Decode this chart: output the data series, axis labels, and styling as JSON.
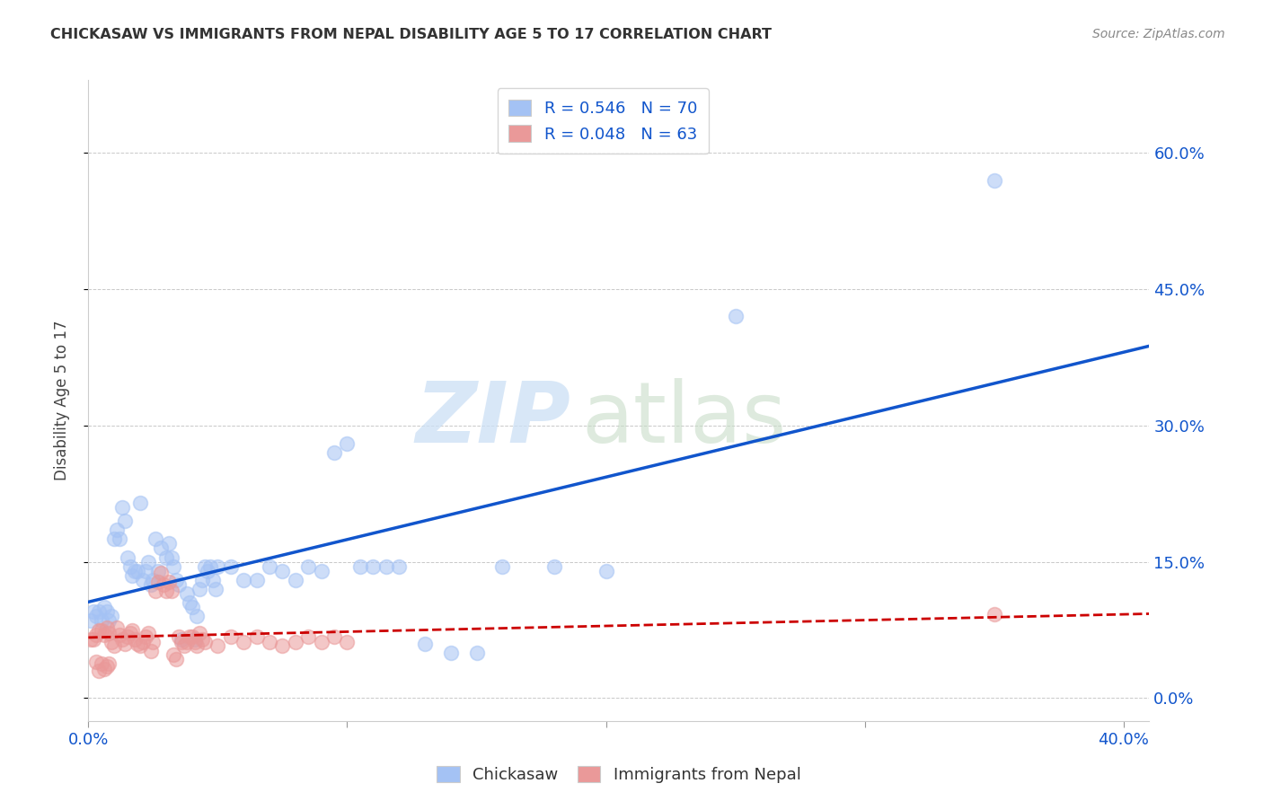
{
  "title": "CHICKASAW VS IMMIGRANTS FROM NEPAL DISABILITY AGE 5 TO 17 CORRELATION CHART",
  "source": "Source: ZipAtlas.com",
  "ylabel": "Disability Age 5 to 17",
  "blue_color": "#a4c2f4",
  "pink_color": "#ea9999",
  "blue_line_color": "#1155cc",
  "pink_line_color": "#cc0000",
  "legend_text_color": "#1155cc",
  "blue_R": 0.546,
  "blue_N": 70,
  "pink_R": 0.048,
  "pink_N": 63,
  "xlim": [
    0.0,
    0.41
  ],
  "ylim": [
    -0.025,
    0.68
  ],
  "xticks": [
    0.0,
    0.1,
    0.2,
    0.3,
    0.4
  ],
  "yticks": [
    0.0,
    0.15,
    0.3,
    0.45,
    0.6
  ],
  "blue_scatter": [
    [
      0.001,
      0.085
    ],
    [
      0.002,
      0.095
    ],
    [
      0.003,
      0.09
    ],
    [
      0.004,
      0.095
    ],
    [
      0.005,
      0.085
    ],
    [
      0.006,
      0.1
    ],
    [
      0.007,
      0.095
    ],
    [
      0.008,
      0.085
    ],
    [
      0.009,
      0.09
    ],
    [
      0.01,
      0.175
    ],
    [
      0.011,
      0.185
    ],
    [
      0.012,
      0.175
    ],
    [
      0.013,
      0.21
    ],
    [
      0.014,
      0.195
    ],
    [
      0.015,
      0.155
    ],
    [
      0.016,
      0.145
    ],
    [
      0.017,
      0.135
    ],
    [
      0.018,
      0.14
    ],
    [
      0.019,
      0.14
    ],
    [
      0.02,
      0.215
    ],
    [
      0.021,
      0.13
    ],
    [
      0.022,
      0.14
    ],
    [
      0.023,
      0.15
    ],
    [
      0.024,
      0.125
    ],
    [
      0.025,
      0.13
    ],
    [
      0.026,
      0.175
    ],
    [
      0.027,
      0.14
    ],
    [
      0.028,
      0.165
    ],
    [
      0.03,
      0.155
    ],
    [
      0.031,
      0.17
    ],
    [
      0.032,
      0.155
    ],
    [
      0.033,
      0.145
    ],
    [
      0.034,
      0.13
    ],
    [
      0.035,
      0.125
    ],
    [
      0.036,
      0.065
    ],
    [
      0.038,
      0.115
    ],
    [
      0.039,
      0.105
    ],
    [
      0.04,
      0.1
    ],
    [
      0.041,
      0.065
    ],
    [
      0.042,
      0.09
    ],
    [
      0.043,
      0.12
    ],
    [
      0.044,
      0.13
    ],
    [
      0.045,
      0.145
    ],
    [
      0.046,
      0.14
    ],
    [
      0.047,
      0.145
    ],
    [
      0.048,
      0.13
    ],
    [
      0.049,
      0.12
    ],
    [
      0.05,
      0.145
    ],
    [
      0.055,
      0.145
    ],
    [
      0.06,
      0.13
    ],
    [
      0.065,
      0.13
    ],
    [
      0.07,
      0.145
    ],
    [
      0.075,
      0.14
    ],
    [
      0.08,
      0.13
    ],
    [
      0.085,
      0.145
    ],
    [
      0.09,
      0.14
    ],
    [
      0.095,
      0.27
    ],
    [
      0.1,
      0.28
    ],
    [
      0.105,
      0.145
    ],
    [
      0.11,
      0.145
    ],
    [
      0.115,
      0.145
    ],
    [
      0.12,
      0.145
    ],
    [
      0.13,
      0.06
    ],
    [
      0.14,
      0.05
    ],
    [
      0.15,
      0.05
    ],
    [
      0.16,
      0.145
    ],
    [
      0.18,
      0.145
    ],
    [
      0.2,
      0.14
    ],
    [
      0.25,
      0.42
    ],
    [
      0.35,
      0.57
    ]
  ],
  "pink_scatter": [
    [
      0.001,
      0.065
    ],
    [
      0.002,
      0.065
    ],
    [
      0.003,
      0.07
    ],
    [
      0.003,
      0.04
    ],
    [
      0.004,
      0.075
    ],
    [
      0.004,
      0.03
    ],
    [
      0.005,
      0.075
    ],
    [
      0.005,
      0.038
    ],
    [
      0.006,
      0.07
    ],
    [
      0.006,
      0.032
    ],
    [
      0.007,
      0.078
    ],
    [
      0.007,
      0.035
    ],
    [
      0.008,
      0.072
    ],
    [
      0.008,
      0.038
    ],
    [
      0.009,
      0.062
    ],
    [
      0.01,
      0.058
    ],
    [
      0.011,
      0.078
    ],
    [
      0.012,
      0.07
    ],
    [
      0.013,
      0.065
    ],
    [
      0.014,
      0.06
    ],
    [
      0.015,
      0.068
    ],
    [
      0.016,
      0.072
    ],
    [
      0.017,
      0.075
    ],
    [
      0.018,
      0.065
    ],
    [
      0.019,
      0.06
    ],
    [
      0.02,
      0.058
    ],
    [
      0.021,
      0.062
    ],
    [
      0.022,
      0.068
    ],
    [
      0.023,
      0.072
    ],
    [
      0.024,
      0.052
    ],
    [
      0.025,
      0.062
    ],
    [
      0.026,
      0.118
    ],
    [
      0.027,
      0.128
    ],
    [
      0.028,
      0.138
    ],
    [
      0.029,
      0.125
    ],
    [
      0.03,
      0.118
    ],
    [
      0.031,
      0.128
    ],
    [
      0.032,
      0.118
    ],
    [
      0.033,
      0.048
    ],
    [
      0.034,
      0.043
    ],
    [
      0.035,
      0.068
    ],
    [
      0.036,
      0.062
    ],
    [
      0.037,
      0.058
    ],
    [
      0.038,
      0.062
    ],
    [
      0.039,
      0.068
    ],
    [
      0.04,
      0.068
    ],
    [
      0.041,
      0.062
    ],
    [
      0.042,
      0.058
    ],
    [
      0.043,
      0.072
    ],
    [
      0.044,
      0.065
    ],
    [
      0.045,
      0.062
    ],
    [
      0.05,
      0.058
    ],
    [
      0.055,
      0.068
    ],
    [
      0.06,
      0.062
    ],
    [
      0.065,
      0.068
    ],
    [
      0.07,
      0.062
    ],
    [
      0.075,
      0.058
    ],
    [
      0.08,
      0.062
    ],
    [
      0.085,
      0.068
    ],
    [
      0.09,
      0.062
    ],
    [
      0.095,
      0.068
    ],
    [
      0.1,
      0.062
    ],
    [
      0.35,
      0.092
    ]
  ]
}
